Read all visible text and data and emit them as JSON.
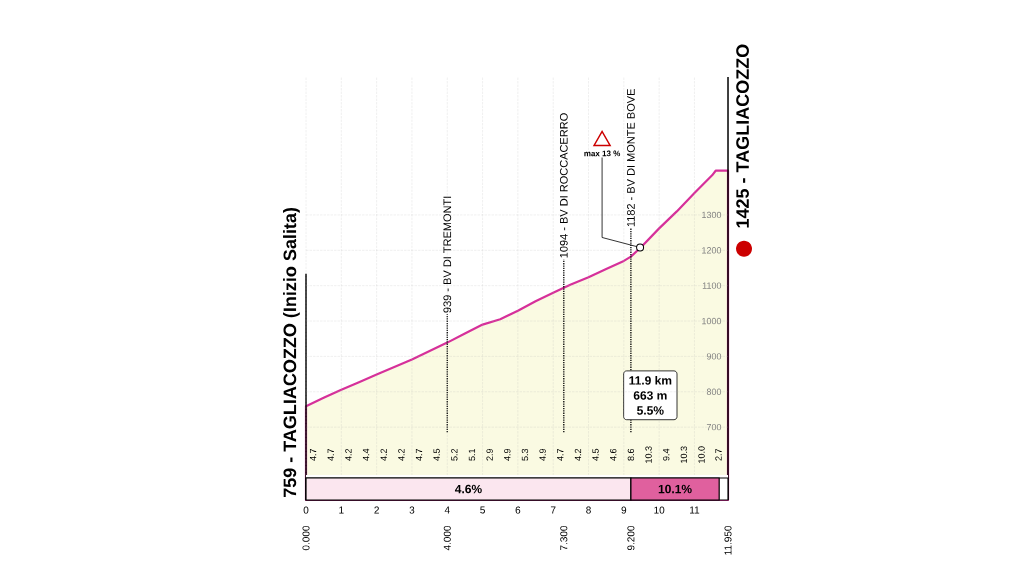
{
  "chart_data": {
    "type": "area",
    "x": [
      0,
      0.5,
      1,
      1.5,
      2,
      2.5,
      3,
      3.5,
      4,
      4.5,
      5,
      5.5,
      6,
      6.5,
      7,
      7.3,
      7.5,
      8,
      8.5,
      9,
      9.2,
      9.5,
      10,
      10.5,
      11,
      11.5,
      11.6,
      11.95
    ],
    "series": [
      {
        "color": "#d6309a",
        "values": [
          759,
          783,
          806,
          827,
          849,
          870,
          891,
          915,
          939,
          965,
          990,
          1005,
          1029,
          1056,
          1080,
          1094,
          1103,
          1124,
          1147,
          1170,
          1182,
          1210,
          1262,
          1310,
          1362,
          1412,
          1425,
          1425
        ]
      }
    ],
    "xlim": [
      0,
      11.95
    ],
    "xticks": [
      0,
      1,
      2,
      3,
      4,
      5,
      6,
      7,
      8,
      9,
      10,
      11
    ],
    "x2lim": [
      0,
      11.95
    ],
    "x2ticks": [
      {
        "value": 0,
        "label": "0.000"
      },
      {
        "value": 4,
        "label": "4.000"
      },
      {
        "value": 7.3,
        "label": "7.300"
      },
      {
        "value": 9.2,
        "label": "9.200"
      },
      {
        "value": 11.95,
        "label": "11.950"
      }
    ],
    "ylim": [
      494,
      1690
    ],
    "yticks": [
      700,
      800,
      900,
      1000,
      1100,
      1200,
      1300
    ],
    "grid": true,
    "ref_lines": [
      {
        "axis": "x",
        "value": 4,
        "label": "939 - BV DI TREMONTI",
        "line_style": "dotted"
      },
      {
        "axis": "x",
        "value": 7.3,
        "label": "1094 - BV DI ROCCACERRO",
        "line_style": "dotted"
      },
      {
        "axis": "x",
        "value": 9.2,
        "label": "1182 - BV DI MONTE BOVE",
        "line_style": "dotted"
      }
    ],
    "bands": [
      {
        "axis": "x",
        "from": 0,
        "to": 9.2,
        "label": "4.6%",
        "color": "#fbe6ef"
      },
      {
        "axis": "x",
        "from": 9.2,
        "to": 11.7,
        "label": "10.1%",
        "color": "#e0609e"
      }
    ],
    "annotations": [
      {
        "text": "759 - TAGLIACOZZO (Inizio Salita)",
        "x": 0,
        "y": 759
      },
      {
        "text": "1425 - TAGLIACOZZO",
        "x": 11.95,
        "y": 1425
      },
      {
        "text": "max 13 %",
        "x": 9.46,
        "y": 1208
      },
      "11.9 km",
      "663 m",
      "5.5%",
      "4.7",
      "4.7",
      "4.2",
      "4.4",
      "4.2",
      "4.2",
      "4.7",
      "4.5",
      "5.2",
      "5.1",
      "2.9",
      "4.9",
      "5.3",
      "4.9",
      "4.7",
      "4.2",
      "4.5",
      "4.6",
      "8.6",
      "10.3",
      "9.4",
      "10.3",
      "10.0",
      "2.7"
    ]
  }
}
